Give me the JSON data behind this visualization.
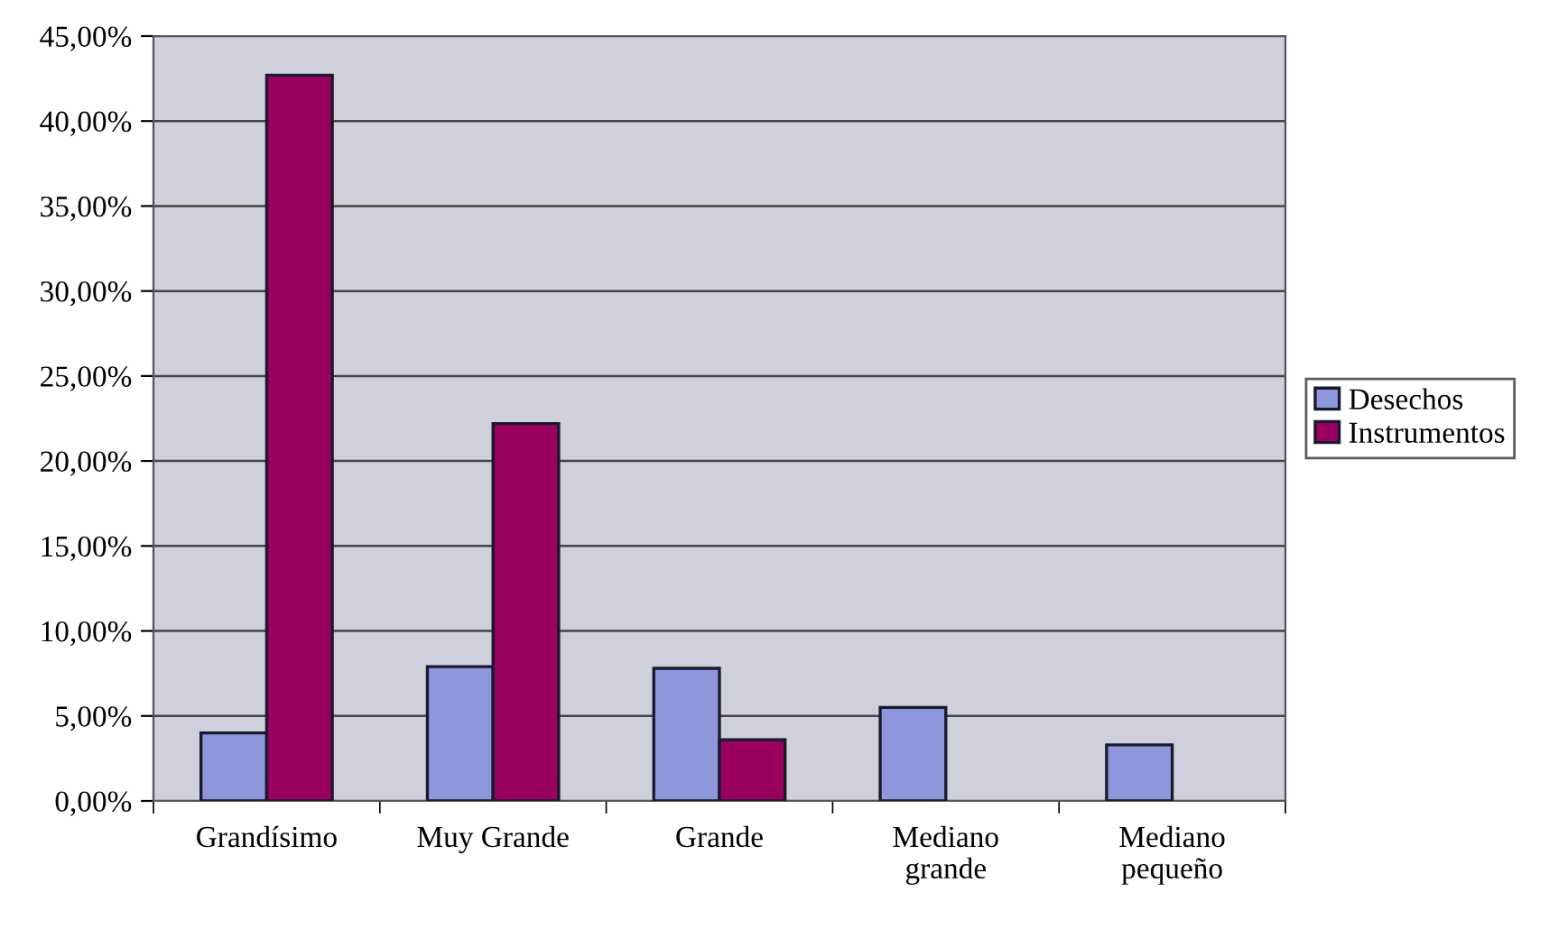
{
  "chart_data": {
    "type": "bar",
    "categories": [
      "Grandísimo",
      "Muy Grande",
      "Grande",
      "Mediano\ngrande",
      "Mediano\npequeño"
    ],
    "series": [
      {
        "name": "Desechos",
        "color": "#8f97dc",
        "values": [
          4.0,
          7.9,
          7.8,
          5.5,
          3.3
        ]
      },
      {
        "name": "Instrumentos",
        "color": "#99005f",
        "values": [
          42.7,
          22.2,
          3.6,
          null,
          null
        ]
      }
    ],
    "ylim": [
      0,
      45
    ],
    "yticks": [
      {
        "value": 0,
        "label": "0,00%"
      },
      {
        "value": 5,
        "label": "5,00%"
      },
      {
        "value": 10,
        "label": "10,00%"
      },
      {
        "value": 15,
        "label": "15,00%"
      },
      {
        "value": 20,
        "label": "20,00%"
      },
      {
        "value": 25,
        "label": "25,00%"
      },
      {
        "value": 30,
        "label": "30,00%"
      },
      {
        "value": 35,
        "label": "35,00%"
      },
      {
        "value": 40,
        "label": "40,00%"
      },
      {
        "value": 45,
        "label": "45,00%"
      }
    ],
    "grid": "y",
    "legend": "right"
  }
}
